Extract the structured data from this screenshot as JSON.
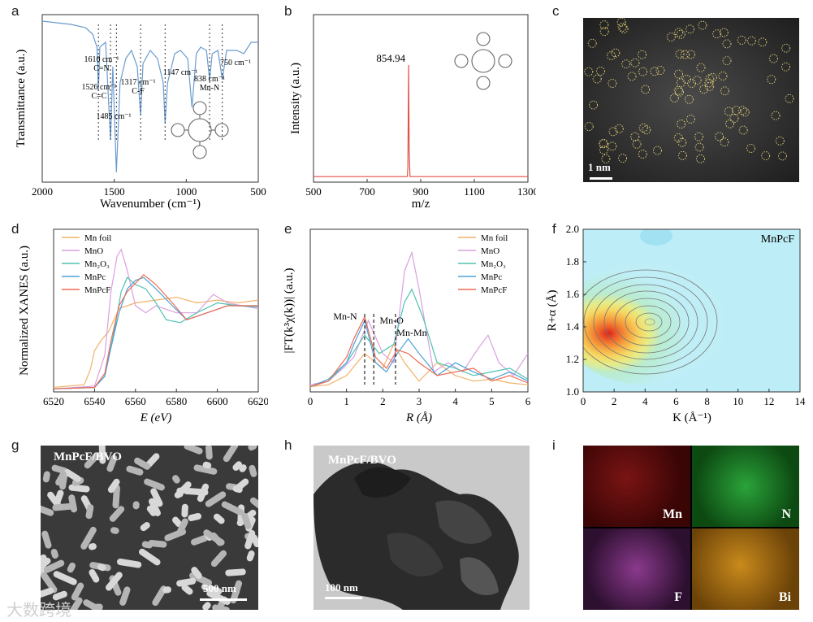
{
  "panel_labels": {
    "a": "a",
    "b": "b",
    "c": "c",
    "d": "d",
    "e": "e",
    "f": "f",
    "g": "g",
    "h": "h",
    "i": "i"
  },
  "chart_data": [
    {
      "id": "a",
      "type": "line",
      "xlabel": "Wavenumber (cm⁻¹)",
      "ylabel": "Transmittance (a.u.)",
      "xlim": [
        2000,
        500
      ],
      "xticks": [
        2000,
        1500,
        1000,
        500
      ],
      "series": [
        {
          "name": "MnPcF FTIR",
          "x": [
            2000,
            1900,
            1800,
            1700,
            1650,
            1620,
            1610,
            1600,
            1560,
            1526,
            1510,
            1485,
            1460,
            1420,
            1380,
            1340,
            1317,
            1300,
            1250,
            1200,
            1160,
            1147,
            1130,
            1080,
            1040,
            990,
            960,
            930,
            900,
            860,
            838,
            820,
            780,
            750,
            720,
            650,
            600,
            550,
            500
          ],
          "y": [
            0.98,
            0.97,
            0.96,
            0.94,
            0.9,
            0.82,
            0.55,
            0.82,
            0.85,
            0.25,
            0.7,
            0.05,
            0.6,
            0.75,
            0.8,
            0.7,
            0.4,
            0.72,
            0.8,
            0.75,
            0.6,
            0.35,
            0.6,
            0.78,
            0.8,
            0.75,
            0.45,
            0.78,
            0.82,
            0.8,
            0.62,
            0.78,
            0.8,
            0.62,
            0.8,
            0.8,
            0.78,
            0.85,
            0.85
          ]
        }
      ],
      "annotations": [
        {
          "text": "1610 cm⁻¹",
          "sub": "C=N"
        },
        {
          "text": "1526 cm⁻¹",
          "sub": "C=C"
        },
        {
          "text": "1485 cm⁻¹",
          "sub": ""
        },
        {
          "text": "1317 cm⁻¹",
          "sub": "C-F"
        },
        {
          "text": "1147 cm⁻¹",
          "sub": ""
        },
        {
          "text": "838 cm⁻¹",
          "sub": "Mn-N"
        },
        {
          "text": "750 cm⁻¹",
          "sub": ""
        }
      ]
    },
    {
      "id": "b",
      "type": "line",
      "xlabel": "m/z",
      "ylabel": "Intensity (a.u.)",
      "xlim": [
        500,
        1300
      ],
      "xticks": [
        500,
        700,
        900,
        1100,
        1300
      ],
      "peak": {
        "x": 854.94,
        "label": "854.94"
      },
      "series": [
        {
          "name": "MS",
          "x": [
            500,
            850,
            852,
            854.94,
            857,
            860,
            1300
          ],
          "y": [
            0.02,
            0.02,
            0.1,
            1.0,
            0.25,
            0.02,
            0.02
          ]
        }
      ]
    },
    {
      "id": "d",
      "type": "line",
      "xlabel": "E (eV)",
      "ylabel": "Normalized XANES (a.u.)",
      "xlim": [
        6520,
        6620
      ],
      "xticks": [
        6520,
        6540,
        6560,
        6580,
        6600,
        6620
      ],
      "legend": [
        "Mn foil",
        "MnO",
        "Mn₂O₃",
        "MnPc",
        "MnPcF"
      ],
      "colors": [
        "#f2b26a",
        "#d9a0e0",
        "#4fc3b0",
        "#4aa3d8",
        "#ef6b55"
      ],
      "series": [
        {
          "name": "Mn foil",
          "x": [
            6520,
            6535,
            6538,
            6540,
            6543,
            6547,
            6552,
            6560,
            6570,
            6580,
            6590,
            6600,
            6610,
            6620
          ],
          "y": [
            0.02,
            0.04,
            0.15,
            0.28,
            0.35,
            0.42,
            0.58,
            0.62,
            0.64,
            0.66,
            0.62,
            0.64,
            0.62,
            0.64
          ]
        },
        {
          "name": "MnO",
          "x": [
            6520,
            6540,
            6545,
            6548,
            6551,
            6553,
            6556,
            6560,
            6565,
            6570,
            6580,
            6590,
            6598,
            6605,
            6612,
            6620
          ],
          "y": [
            0.01,
            0.03,
            0.25,
            0.7,
            0.95,
            1.0,
            0.85,
            0.6,
            0.55,
            0.6,
            0.55,
            0.55,
            0.68,
            0.62,
            0.6,
            0.58
          ]
        },
        {
          "name": "Mn₂O₃",
          "x": [
            6520,
            6540,
            6545,
            6550,
            6553,
            6556,
            6560,
            6565,
            6570,
            6575,
            6582,
            6590,
            6600,
            6610,
            6620
          ],
          "y": [
            0.01,
            0.02,
            0.1,
            0.45,
            0.7,
            0.8,
            0.75,
            0.72,
            0.62,
            0.5,
            0.48,
            0.55,
            0.62,
            0.6,
            0.59
          ]
        },
        {
          "name": "MnPc",
          "x": [
            6520,
            6540,
            6545,
            6548,
            6552,
            6556,
            6560,
            6564,
            6570,
            6578,
            6585,
            6595,
            6605,
            6620
          ],
          "y": [
            0.01,
            0.02,
            0.1,
            0.3,
            0.55,
            0.72,
            0.78,
            0.8,
            0.72,
            0.6,
            0.5,
            0.55,
            0.6,
            0.6
          ]
        },
        {
          "name": "MnPcF",
          "x": [
            6520,
            6540,
            6545,
            6548,
            6552,
            6556,
            6560,
            6564,
            6570,
            6578,
            6585,
            6595,
            6605,
            6620
          ],
          "y": [
            0.01,
            0.02,
            0.12,
            0.35,
            0.6,
            0.7,
            0.76,
            0.82,
            0.75,
            0.62,
            0.5,
            0.55,
            0.6,
            0.6
          ]
        }
      ]
    },
    {
      "id": "e",
      "type": "line",
      "xlabel": "R (Å)",
      "ylabel": "|FT(k³χ(k))| (a.u.)",
      "xlim": [
        0,
        6
      ],
      "xticks": [
        0,
        1,
        2,
        3,
        4,
        5,
        6
      ],
      "legend": [
        "Mn foil",
        "MnO",
        "Mn₂O₃",
        "MnPc",
        "MnPcF"
      ],
      "colors": [
        "#f2b26a",
        "#d9a0e0",
        "#4fc3b0",
        "#4aa3d8",
        "#ef6b55"
      ],
      "markers": [
        {
          "x": 1.5,
          "label": "Mn-N"
        },
        {
          "x": 1.75,
          "label": "Mn-O"
        },
        {
          "x": 2.35,
          "label": "Mn-Mn"
        }
      ],
      "series": [
        {
          "name": "Mn foil",
          "x": [
            0,
            0.5,
            1,
            1.5,
            2,
            2.3,
            2.6,
            3,
            3.5,
            4,
            4.5,
            5,
            5.5,
            6
          ],
          "y": [
            0.02,
            0.03,
            0.08,
            0.2,
            0.12,
            0.25,
            0.15,
            0.05,
            0.15,
            0.08,
            0.05,
            0.06,
            0.04,
            0.03
          ]
        },
        {
          "name": "MnO",
          "x": [
            0,
            0.5,
            0.9,
            1.2,
            1.6,
            2.0,
            2.3,
            2.6,
            2.8,
            3.0,
            3.4,
            3.8,
            4.2,
            4.6,
            4.9,
            5.2,
            5.6,
            6
          ],
          "y": [
            0.03,
            0.05,
            0.12,
            0.18,
            0.38,
            0.2,
            0.15,
            0.65,
            0.75,
            0.55,
            0.1,
            0.15,
            0.1,
            0.22,
            0.3,
            0.15,
            0.08,
            0.2
          ]
        },
        {
          "name": "Mn₂O₃",
          "x": [
            0,
            0.5,
            1,
            1.5,
            1.9,
            2.3,
            2.6,
            2.8,
            3.1,
            3.5,
            4,
            4.5,
            5,
            5.5,
            6
          ],
          "y": [
            0.02,
            0.05,
            0.15,
            0.3,
            0.2,
            0.25,
            0.48,
            0.55,
            0.4,
            0.15,
            0.12,
            0.08,
            0.1,
            0.12,
            0.06
          ]
        },
        {
          "name": "MnPc",
          "x": [
            0,
            0.5,
            1,
            1.2,
            1.5,
            1.8,
            2.1,
            2.4,
            2.7,
            3,
            3.5,
            4,
            4.5,
            5,
            5.5,
            6
          ],
          "y": [
            0.02,
            0.06,
            0.15,
            0.25,
            0.38,
            0.15,
            0.1,
            0.2,
            0.28,
            0.2,
            0.08,
            0.15,
            0.1,
            0.06,
            0.1,
            0.05
          ]
        },
        {
          "name": "MnPcF",
          "x": [
            0,
            0.5,
            1,
            1.2,
            1.5,
            1.8,
            2.1,
            2.4,
            2.7,
            3,
            3.5,
            4,
            4.5,
            5,
            5.5,
            6
          ],
          "y": [
            0.02,
            0.05,
            0.18,
            0.28,
            0.4,
            0.18,
            0.12,
            0.22,
            0.2,
            0.15,
            0.08,
            0.1,
            0.12,
            0.05,
            0.08,
            0.04
          ]
        }
      ]
    },
    {
      "id": "f",
      "type": "heatmap",
      "title": "MnPcF",
      "xlabel": "K (Å⁻¹)",
      "ylabel": "R+α (Å)",
      "xlim": [
        0,
        14
      ],
      "ylim": [
        1.0,
        2.0
      ],
      "xticks": [
        0,
        2,
        4,
        6,
        8,
        10,
        12,
        14
      ],
      "yticks": [
        1.0,
        1.2,
        1.4,
        1.6,
        1.8,
        2.0
      ],
      "peak": {
        "k": 4.6,
        "r": 1.41
      }
    }
  ],
  "panel_c": {
    "scale": "1 nm"
  },
  "panel_g": {
    "label": "MnPcF/BVO",
    "scale": "500 nm"
  },
  "panel_h": {
    "label": "MnPcF/BVO",
    "scale": "100 nm"
  },
  "panel_i": {
    "elements": [
      "Mn",
      "N",
      "F",
      "Bi"
    ]
  },
  "watermark": "大数跨境"
}
